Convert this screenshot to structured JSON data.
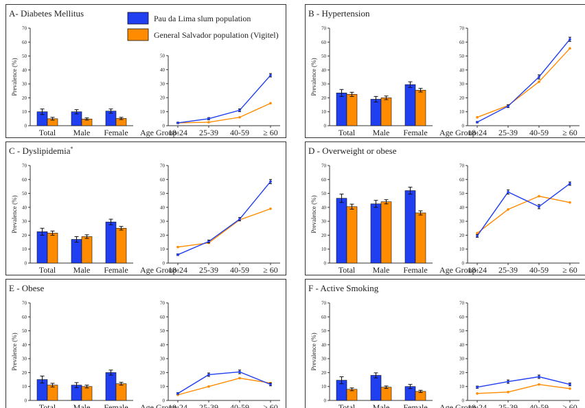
{
  "legend": {
    "slum_label": "Pau da Lima slum population",
    "general_label": "General Salvador population (Vigitel)",
    "slum_color": "#1f3ff0",
    "general_color": "#ff8c00"
  },
  "common": {
    "ylabel": "Prevalence (%)",
    "bar_categories": [
      "Total",
      "Male",
      "Female"
    ],
    "age_prefix": "Age Group:",
    "age_groups": [
      "18-24",
      "25-39",
      "40-59",
      "≥ 60"
    ]
  },
  "chart_data": [
    {
      "id": "A",
      "title": "A- Diabetes Mellitus",
      "title_sup": "",
      "bars": {
        "type": "bar",
        "ylim": [
          0,
          70
        ],
        "ticks": [
          0,
          10,
          20,
          30,
          40,
          50,
          60,
          70
        ],
        "slum": [
          10.0,
          10.0,
          10.5
        ],
        "slum_err": [
          2.0,
          1.5,
          1.5
        ],
        "general": [
          5.0,
          4.8,
          5.2
        ],
        "general_err": [
          1.0,
          0.8,
          0.8
        ]
      },
      "lines": {
        "type": "line",
        "ylim": [
          0,
          50
        ],
        "ticks": [
          0,
          10,
          20,
          30,
          40,
          50
        ],
        "slum": [
          2.0,
          5.0,
          11.0,
          36.0
        ],
        "slum_err": [
          0.5,
          0.8,
          1.0,
          1.2
        ],
        "general": [
          2.0,
          2.5,
          6.0,
          16.0
        ]
      }
    },
    {
      "id": "B",
      "title": "B - Hypertension",
      "title_sup": "",
      "bars": {
        "type": "bar",
        "ylim": [
          0,
          70
        ],
        "ticks": [
          0,
          10,
          20,
          30,
          40,
          50,
          60,
          70
        ],
        "slum": [
          23.5,
          19.0,
          29.5
        ],
        "slum_err": [
          2.5,
          2.0,
          2.0
        ],
        "general": [
          22.5,
          20.0,
          25.5
        ],
        "general_err": [
          1.5,
          1.3,
          1.3
        ]
      },
      "lines": {
        "type": "line",
        "ylim": [
          0,
          70
        ],
        "ticks": [
          0,
          10,
          20,
          30,
          40,
          50,
          60,
          70
        ],
        "slum": [
          2.5,
          14.0,
          35.0,
          62.0
        ],
        "slum_err": [
          0.5,
          1.0,
          1.5,
          1.5
        ],
        "general": [
          6.0,
          14.5,
          31.5,
          55.5
        ]
      }
    },
    {
      "id": "C",
      "title": "C - Dyslipidemia",
      "title_sup": "*",
      "bars": {
        "type": "bar",
        "ylim": [
          0,
          70
        ],
        "ticks": [
          0,
          10,
          20,
          30,
          40,
          50,
          60,
          70
        ],
        "slum": [
          22.5,
          17.0,
          29.5
        ],
        "slum_err": [
          2.5,
          2.0,
          2.0
        ],
        "general": [
          21.5,
          19.0,
          25.0
        ],
        "general_err": [
          1.5,
          1.3,
          1.3
        ]
      },
      "lines": {
        "type": "line",
        "ylim": [
          0,
          70
        ],
        "ticks": [
          0,
          10,
          20,
          30,
          40,
          50,
          60,
          70
        ],
        "slum": [
          6.0,
          15.5,
          31.5,
          58.5
        ],
        "slum_err": [
          0.6,
          1.0,
          1.2,
          1.5
        ],
        "general": [
          11.5,
          14.5,
          31.0,
          39.0
        ]
      }
    },
    {
      "id": "D",
      "title": "D - Overweight or obese",
      "title_sup": "",
      "bars": {
        "type": "bar",
        "ylim": [
          0,
          70
        ],
        "ticks": [
          0,
          10,
          20,
          30,
          40,
          50,
          60,
          70
        ],
        "slum": [
          46.5,
          42.5,
          52.0
        ],
        "slum_err": [
          3.0,
          2.5,
          2.5
        ],
        "general": [
          40.5,
          44.0,
          36.0
        ],
        "general_err": [
          1.8,
          1.5,
          1.5
        ]
      },
      "lines": {
        "type": "line",
        "ylim": [
          0,
          70
        ],
        "ticks": [
          0,
          10,
          20,
          30,
          40,
          50,
          60,
          70
        ],
        "slum": [
          19.5,
          51.0,
          40.5,
          57.0
        ],
        "slum_err": [
          1.0,
          1.5,
          1.5,
          1.2
        ],
        "general": [
          21.5,
          38.5,
          48.0,
          43.5
        ]
      }
    },
    {
      "id": "E",
      "title": "E - Obese",
      "title_sup": "",
      "bars": {
        "type": "bar",
        "ylim": [
          0,
          70
        ],
        "ticks": [
          0,
          10,
          20,
          30,
          40,
          50,
          60,
          70
        ],
        "slum": [
          15.0,
          11.0,
          20.0
        ],
        "slum_err": [
          2.5,
          1.8,
          1.8
        ],
        "general": [
          11.0,
          10.0,
          12.0
        ],
        "general_err": [
          1.3,
          1.0,
          1.0
        ]
      },
      "lines": {
        "type": "line",
        "ylim": [
          0,
          70
        ],
        "ticks": [
          0,
          10,
          20,
          30,
          40,
          50,
          60,
          70
        ],
        "slum": [
          5.0,
          18.5,
          20.5,
          11.5
        ],
        "slum_err": [
          0.6,
          1.2,
          1.3,
          1.0
        ],
        "general": [
          4.0,
          10.0,
          16.0,
          12.5
        ]
      }
    },
    {
      "id": "F",
      "title": "F - Active Smoking",
      "title_sup": "",
      "bars": {
        "type": "bar",
        "ylim": [
          0,
          70
        ],
        "ticks": [
          0,
          10,
          20,
          30,
          40,
          50,
          60,
          70
        ],
        "slum": [
          14.5,
          18.0,
          10.0
        ],
        "slum_err": [
          2.5,
          1.8,
          1.5
        ],
        "general": [
          8.0,
          9.5,
          6.5
        ],
        "general_err": [
          1.0,
          0.9,
          0.8
        ]
      },
      "lines": {
        "type": "line",
        "ylim": [
          0,
          70
        ],
        "ticks": [
          0,
          10,
          20,
          30,
          40,
          50,
          60,
          70
        ],
        "slum": [
          9.5,
          13.5,
          17.0,
          11.5
        ],
        "slum_err": [
          0.8,
          1.2,
          1.2,
          1.0
        ],
        "general": [
          5.0,
          6.0,
          11.5,
          8.5
        ]
      }
    }
  ]
}
